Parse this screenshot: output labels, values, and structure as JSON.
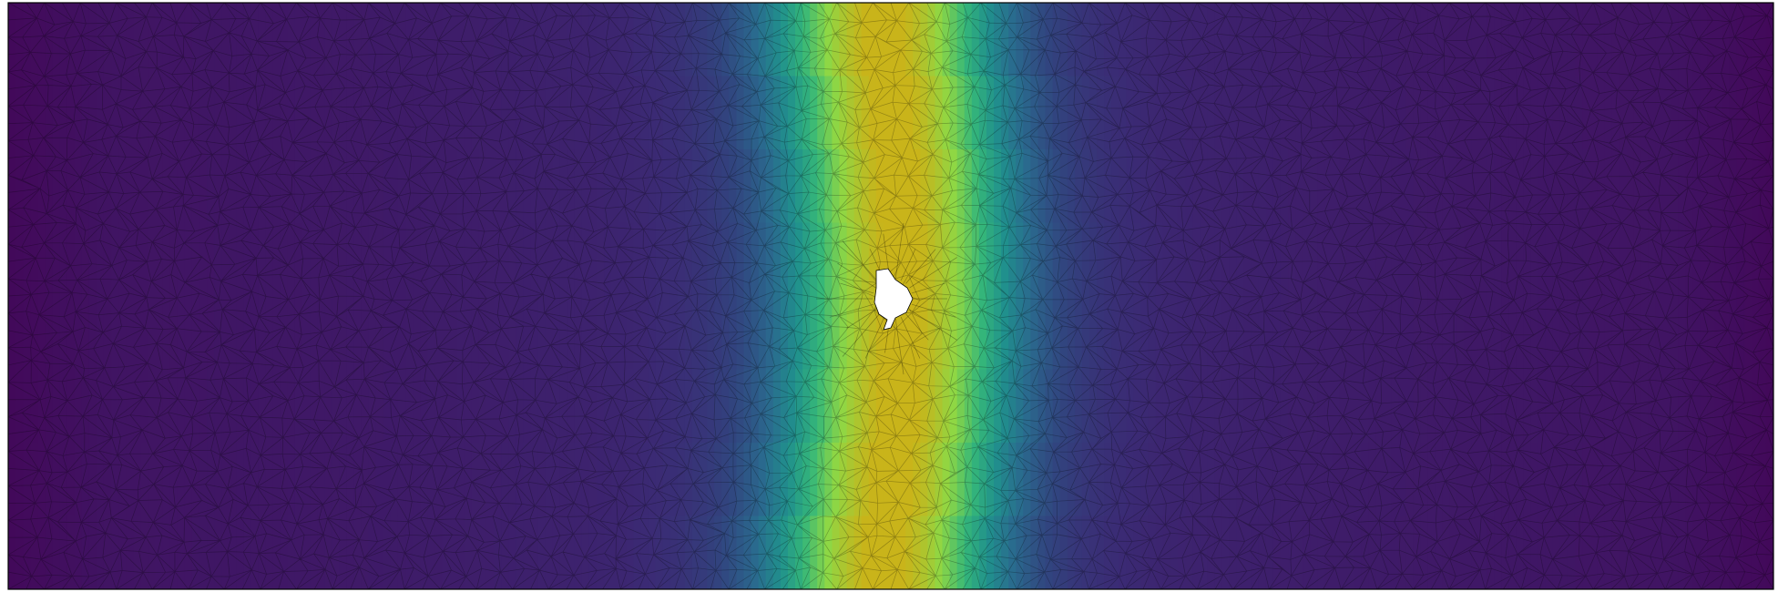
{
  "figure": {
    "type": "triangular-mesh-field",
    "colormap": "viridis",
    "background_color": "#ffffff",
    "frame_color": "#000000",
    "mesh_line_color": "#000000",
    "field": {
      "description_shape": "band",
      "peak_color": "#c9b41a",
      "low_color": "#2d0a4a",
      "band_center_fraction": 0.5,
      "band_width_fraction": 0.07,
      "secondary_band_shift": 0.035,
      "hole_fill": "#ffffff"
    },
    "colors": {
      "viridis": [
        "#440154",
        "#3b2a74",
        "#31457f",
        "#2a6a8e",
        "#20908d",
        "#35b779",
        "#8fd744",
        "#c9b41a"
      ]
    }
  }
}
